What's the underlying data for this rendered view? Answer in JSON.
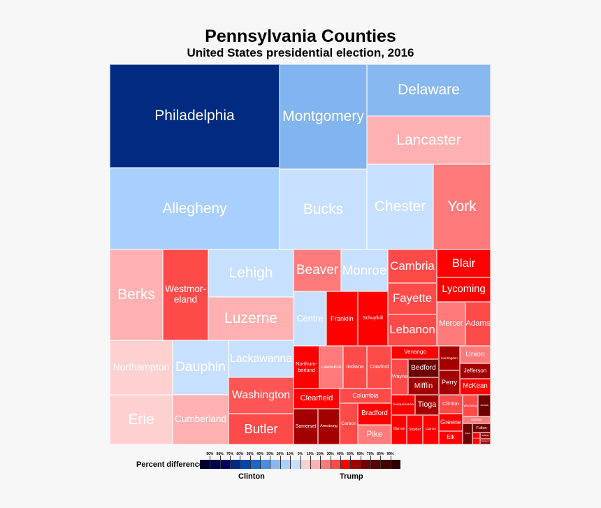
{
  "chart_data": {
    "type": "treemap",
    "title": "Pennsylvania Counties",
    "subtitle": "United States presidential election, 2016",
    "items": [
      {
        "name": "Philadelphia",
        "color": "#002b80"
      },
      {
        "name": "Montgomery",
        "color": "#82b4ef"
      },
      {
        "name": "Delaware",
        "color": "#88b8f0"
      },
      {
        "name": "Lancaster",
        "color": "#ffb0b0"
      },
      {
        "name": "Allegheny",
        "color": "#a8d0ff"
      },
      {
        "name": "Bucks",
        "color": "#c8e0ff"
      },
      {
        "name": "Chester",
        "color": "#c8e0ff"
      },
      {
        "name": "York",
        "color": "#ff7a7a"
      },
      {
        "name": "Berks",
        "color": "#ffb0b0"
      },
      {
        "name": "Westmor-\neland",
        "color": "#ff4a4a"
      },
      {
        "name": "Lehigh",
        "color": "#c8e0ff"
      },
      {
        "name": "Luzerne",
        "color": "#ffb0b0"
      },
      {
        "name": "Northampton",
        "color": "#ffd0d0"
      },
      {
        "name": "Erie",
        "color": "#ffd0d0"
      },
      {
        "name": "Dauphin",
        "color": "#c8e0ff"
      },
      {
        "name": "Cumberland",
        "color": "#ffb0b0"
      },
      {
        "name": "Lackawanna",
        "color": "#c8e0ff"
      },
      {
        "name": "Washington",
        "color": "#ff5555"
      },
      {
        "name": "Butler",
        "color": "#ff4a4a"
      },
      {
        "name": "Beaver",
        "color": "#ff7a7a"
      },
      {
        "name": "Monroe",
        "color": "#c8e0ff"
      },
      {
        "name": "Centre",
        "color": "#c8e0ff"
      },
      {
        "name": "Franklin",
        "color": "#ff0000"
      },
      {
        "name": "Schuylkill",
        "color": "#ff0000"
      },
      {
        "name": "Cambria",
        "color": "#ff4a4a"
      },
      {
        "name": "Fayette",
        "color": "#ff4a4a"
      },
      {
        "name": "Lebanon",
        "color": "#ff4a4a"
      },
      {
        "name": "Blair",
        "color": "#ff0000"
      },
      {
        "name": "Lycoming",
        "color": "#ff0000"
      },
      {
        "name": "Mercer",
        "color": "#ff7a7a"
      },
      {
        "name": "Adams",
        "color": "#ff4a4a"
      },
      {
        "name": "Northum-\nberland",
        "color": "#ff0000"
      },
      {
        "name": "Lawrence",
        "color": "#ff7a7a"
      },
      {
        "name": "Indiana",
        "color": "#ff4a4a"
      },
      {
        "name": "Crawford",
        "color": "#ff4a4a"
      },
      {
        "name": "Clearfield",
        "color": "#ff0000"
      },
      {
        "name": "Columbia",
        "color": "#ff4a4a"
      },
      {
        "name": "Somerset",
        "color": "#a50000"
      },
      {
        "name": "Armstrong",
        "color": "#a50000"
      },
      {
        "name": "Carbon",
        "color": "#ff4a4a"
      },
      {
        "name": "Bradford",
        "color": "#ff0000"
      },
      {
        "name": "Pike",
        "color": "#ff7a7a"
      },
      {
        "name": "Venango",
        "color": "#ff0000"
      },
      {
        "name": "Wayne",
        "color": "#ff4a4a"
      },
      {
        "name": "Bedford",
        "color": "#700000"
      },
      {
        "name": "Mifflin",
        "color": "#a50000"
      },
      {
        "name": "Huntingdon",
        "color": "#a50000"
      },
      {
        "name": "Perry",
        "color": "#a50000"
      },
      {
        "name": "Union",
        "color": "#ff7a7a"
      },
      {
        "name": "Jefferson",
        "color": "#a50000"
      },
      {
        "name": "McKean",
        "color": "#ff0000"
      },
      {
        "name": "Susquehanna",
        "color": "#ff0000"
      },
      {
        "name": "Tioga",
        "color": "#a50000"
      },
      {
        "name": "Warren",
        "color": "#ff0000"
      },
      {
        "name": "Snyder",
        "color": "#ff0000"
      },
      {
        "name": "Clarion",
        "color": "#ff0000"
      },
      {
        "name": "Clinton",
        "color": "#ff4a4a"
      },
      {
        "name": "Greene",
        "color": "#ff0000"
      },
      {
        "name": "Elk",
        "color": "#ff0000"
      },
      {
        "name": "Wyoming",
        "color": "#ff4a4a"
      },
      {
        "name": "Juniata",
        "color": "#700000"
      },
      {
        "name": "Montour",
        "color": "#ff7a7a"
      },
      {
        "name": "Potter",
        "color": "#700000"
      },
      {
        "name": "Fulton",
        "color": "#700000"
      },
      {
        "name": "Forest",
        "color": "#ff0000"
      },
      {
        "name": "Sullivan",
        "color": "#a50000"
      },
      {
        "name": "Cameron",
        "color": "#a50000"
      }
    ],
    "legend": {
      "label": "Percent difference:",
      "left_label": "Clinton",
      "right_label": "Trump",
      "ticks": [
        "90%",
        "80%",
        "70%",
        "60%",
        "50%",
        "40%",
        "30%",
        "20%",
        "10%",
        "0%",
        "10%",
        "20%",
        "30%",
        "40%",
        "50%",
        "60%",
        "70%",
        "80%",
        "90%"
      ],
      "colors": [
        "#000033",
        "#00044a",
        "#000060",
        "#002b80",
        "#0046ad",
        "#1a66cc",
        "#4a8ee0",
        "#88b8f0",
        "#a8d0ff",
        "#c8e0ff",
        "#ffd0d0",
        "#ffb0b0",
        "#ff7a7a",
        "#ff4a4a",
        "#ff0000",
        "#a50000",
        "#700000",
        "#5a0000",
        "#450000",
        "#2d0000"
      ]
    }
  }
}
